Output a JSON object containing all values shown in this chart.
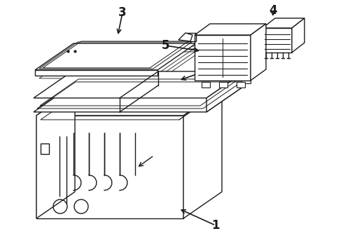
{
  "background_color": "#ffffff",
  "line_color": "#1a1a1a",
  "figsize": [
    4.9,
    3.6
  ],
  "dpi": 100,
  "lw": 1.0
}
